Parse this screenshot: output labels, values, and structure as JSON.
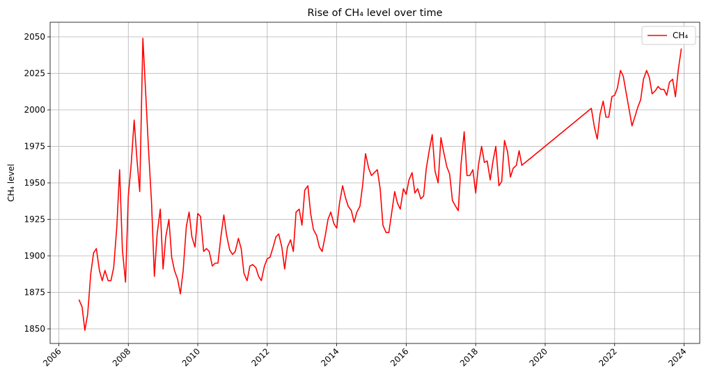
{
  "chart_data": {
    "type": "line",
    "title": "Rise of CH₄ level over time",
    "xlabel": "",
    "ylabel": "CH₄ level",
    "xlim": [
      2005.75,
      2024.45
    ],
    "ylim": [
      1840,
      2060
    ],
    "x_ticks": [
      2006,
      2008,
      2010,
      2012,
      2014,
      2016,
      2018,
      2020,
      2022,
      2024
    ],
    "y_ticks": [
      1850,
      1875,
      1900,
      1925,
      1950,
      1975,
      2000,
      2025,
      2050
    ],
    "grid": true,
    "legend": {
      "position": "top-right",
      "entries": [
        "CH₄"
      ]
    },
    "series": [
      {
        "name": "CH₄",
        "color": "#ff0000",
        "x": [
          2006.58,
          2006.67,
          2006.75,
          2006.83,
          2006.92,
          2007.0,
          2007.08,
          2007.17,
          2007.25,
          2007.33,
          2007.42,
          2007.5,
          2007.58,
          2007.67,
          2007.75,
          2007.83,
          2007.92,
          2008.0,
          2008.08,
          2008.17,
          2008.25,
          2008.33,
          2008.42,
          2008.5,
          2008.58,
          2008.67,
          2008.75,
          2008.83,
          2008.92,
          2009.0,
          2009.08,
          2009.17,
          2009.25,
          2009.33,
          2009.42,
          2009.5,
          2009.58,
          2009.67,
          2009.75,
          2009.83,
          2009.92,
          2010.0,
          2010.08,
          2010.17,
          2010.25,
          2010.33,
          2010.42,
          2010.5,
          2010.58,
          2010.67,
          2010.75,
          2010.83,
          2010.92,
          2011.0,
          2011.08,
          2011.17,
          2011.25,
          2011.33,
          2011.42,
          2011.5,
          2011.58,
          2011.67,
          2011.75,
          2011.83,
          2011.92,
          2012.0,
          2012.08,
          2012.17,
          2012.25,
          2012.33,
          2012.42,
          2012.5,
          2012.58,
          2012.67,
          2012.75,
          2012.83,
          2012.92,
          2013.0,
          2013.08,
          2013.17,
          2013.25,
          2013.33,
          2013.42,
          2013.5,
          2013.58,
          2013.67,
          2013.75,
          2013.83,
          2013.92,
          2014.0,
          2014.08,
          2014.17,
          2014.25,
          2014.33,
          2014.42,
          2014.5,
          2014.58,
          2014.67,
          2014.75,
          2014.83,
          2014.92,
          2015.0,
          2015.08,
          2015.17,
          2015.25,
          2015.33,
          2015.42,
          2015.5,
          2015.58,
          2015.67,
          2015.75,
          2015.83,
          2015.92,
          2016.0,
          2016.08,
          2016.17,
          2016.25,
          2016.33,
          2016.42,
          2016.5,
          2016.58,
          2016.67,
          2016.75,
          2016.83,
          2016.92,
          2017.0,
          2017.08,
          2017.17,
          2017.25,
          2017.33,
          2017.42,
          2017.5,
          2017.58,
          2017.67,
          2017.75,
          2017.83,
          2017.92,
          2018.0,
          2018.08,
          2018.17,
          2018.25,
          2018.33,
          2018.42,
          2018.5,
          2018.58,
          2018.67,
          2018.75,
          2018.83,
          2018.92,
          2019.0,
          2019.08,
          2019.17,
          2019.25,
          2019.33,
          2021.33,
          2021.42,
          2021.5,
          2021.58,
          2021.67,
          2021.75,
          2021.83,
          2021.92,
          2022.0,
          2022.08,
          2022.17,
          2022.25,
          2022.33,
          2022.42,
          2022.5,
          2022.58,
          2022.67,
          2022.75,
          2022.83,
          2022.92,
          2023.0,
          2023.08,
          2023.17,
          2023.25,
          2023.33,
          2023.42,
          2023.5,
          2023.58,
          2023.67,
          2023.75,
          2023.83,
          2023.92
        ],
        "y": [
          1870,
          1865,
          1849,
          1860,
          1888,
          1902,
          1905,
          1890,
          1883,
          1890,
          1883,
          1883,
          1892,
          1920,
          1959,
          1904,
          1882,
          1941,
          1962,
          1993,
          1966,
          1944,
          2049,
          2012,
          1974,
          1936,
          1886,
          1915,
          1932,
          1891,
          1913,
          1925,
          1899,
          1890,
          1884,
          1874,
          1890,
          1920,
          1930,
          1913,
          1906,
          1929,
          1927,
          1903,
          1905,
          1903,
          1893,
          1895,
          1895,
          1914,
          1928,
          1914,
          1904,
          1901,
          1903,
          1912,
          1905,
          1888,
          1883,
          1893,
          1894,
          1892,
          1886,
          1883,
          1893,
          1898,
          1899,
          1906,
          1913,
          1915,
          1906,
          1891,
          1906,
          1911,
          1903,
          1930,
          1932,
          1921,
          1945,
          1948,
          1929,
          1918,
          1914,
          1906,
          1903,
          1914,
          1925,
          1930,
          1922,
          1919,
          1936,
          1948,
          1940,
          1934,
          1931,
          1923,
          1930,
          1934,
          1949,
          1970,
          1960,
          1955,
          1957,
          1959,
          1946,
          1921,
          1916,
          1916,
          1929,
          1944,
          1936,
          1932,
          1946,
          1942,
          1952,
          1957,
          1943,
          1946,
          1939,
          1941,
          1960,
          1973,
          1983,
          1958,
          1950,
          1981,
          1971,
          1961,
          1956,
          1938,
          1934,
          1931,
          1963,
          1985,
          1955,
          1955,
          1959,
          1943,
          1962,
          1975,
          1964,
          1965,
          1952,
          1965,
          1975,
          1948,
          1951,
          1979,
          1971,
          1954,
          1960,
          1962,
          1972,
          1962,
          2001,
          1988,
          1980,
          1997,
          2006,
          1995,
          1995,
          2009,
          2010,
          2015,
          2027,
          2023,
          2012,
          2000,
          1989,
          1995,
          2002,
          2007,
          2021,
          2027,
          2022,
          2011,
          2013,
          2016,
          2014,
          2014,
          2010,
          2019,
          2021,
          2009,
          2027,
          2042
        ]
      }
    ]
  }
}
